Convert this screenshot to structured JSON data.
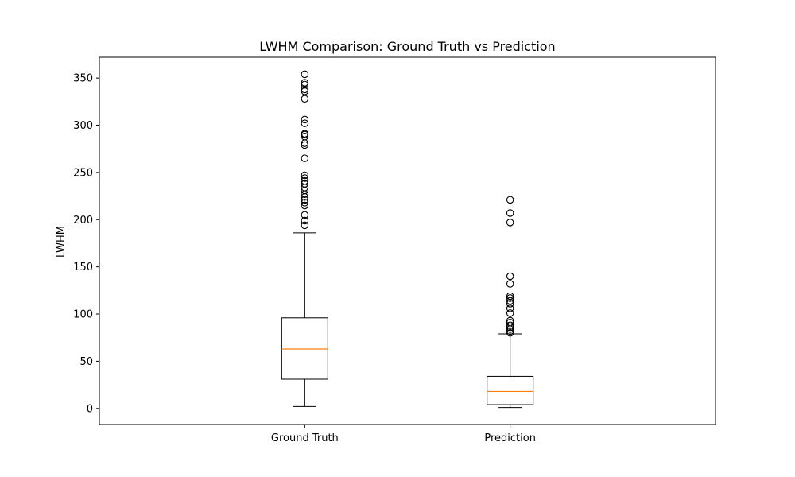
{
  "chart_data": {
    "type": "box",
    "title": "LWHM Comparison: Ground Truth vs Prediction",
    "xlabel": "",
    "ylabel": "LWHM",
    "ylim": [
      -17,
      372
    ],
    "yticks": [
      0,
      50,
      100,
      150,
      200,
      250,
      300,
      350
    ],
    "grid": false,
    "colors": {
      "box": "#000000",
      "median": "#ff7f0e",
      "frame": "#000000"
    },
    "series": [
      {
        "category": "Ground Truth",
        "whisker_low": 2,
        "q1": 31,
        "median": 63,
        "q3": 96,
        "whisker_high": 186,
        "outliers": [
          194,
          199,
          205,
          215,
          218,
          221,
          224,
          227,
          231,
          234,
          238,
          241,
          244,
          247,
          265,
          279,
          281,
          288,
          290,
          291,
          302,
          306,
          328,
          336,
          338,
          343,
          345,
          354
        ]
      },
      {
        "category": "Prediction",
        "whisker_low": 1,
        "q1": 4,
        "median": 18,
        "q3": 34,
        "whisker_high": 79,
        "outliers": [
          80,
          82,
          84,
          86,
          88,
          91,
          93,
          101,
          106,
          111,
          114,
          117,
          119,
          132,
          140,
          197,
          207,
          221
        ]
      }
    ]
  }
}
